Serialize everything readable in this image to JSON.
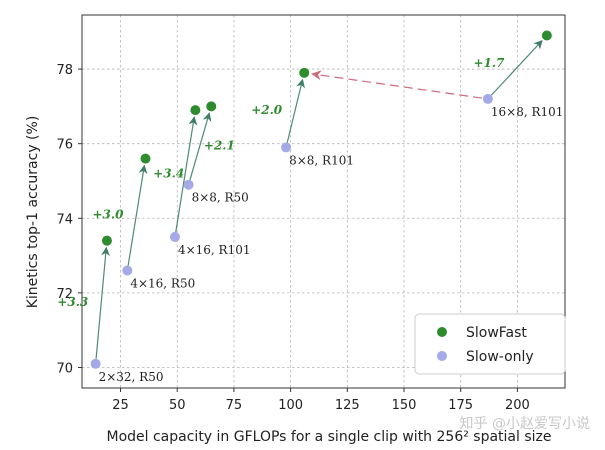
{
  "chart_data": {
    "type": "scatter",
    "title": "",
    "xlabel": "Model capacity in GFLOPs for a single clip with 256² spatial size",
    "ylabel": "Kinetics top-1 accuracy (%)",
    "xlim": [
      8,
      221
    ],
    "ylim": [
      69.45,
      79.45
    ],
    "xticks": [
      25,
      50,
      75,
      100,
      125,
      150,
      175,
      200
    ],
    "yticks": [
      70,
      72,
      74,
      76,
      78
    ],
    "grid": true,
    "legend_position": "bottom-right",
    "series": [
      {
        "name": "SlowFast",
        "color": "#2e8b2e",
        "points": [
          {
            "x": 19,
            "y": 73.4
          },
          {
            "x": 36,
            "y": 75.6
          },
          {
            "x": 58,
            "y": 76.9
          },
          {
            "x": 65,
            "y": 77.0
          },
          {
            "x": 106,
            "y": 77.9
          },
          {
            "x": 213,
            "y": 78.9
          }
        ]
      },
      {
        "name": "Slow-only",
        "color": "#a4a9e8",
        "points": [
          {
            "x": 14,
            "y": 70.1,
            "label": "2×32, R50"
          },
          {
            "x": 28,
            "y": 72.6,
            "label": "4×16, R50"
          },
          {
            "x": 49,
            "y": 73.5,
            "label": "4×16, R101"
          },
          {
            "x": 55,
            "y": 74.9,
            "label": "8×8, R50"
          },
          {
            "x": 98,
            "y": 75.9,
            "label": "8×8, R101"
          },
          {
            "x": 187,
            "y": 77.2,
            "label": "16×8, R101"
          }
        ]
      }
    ],
    "arrows": [
      {
        "from": [
          14,
          70.1
        ],
        "to": [
          19,
          73.4
        ],
        "gain": "+3.3"
      },
      {
        "from": [
          28,
          72.6
        ],
        "to": [
          36,
          75.6
        ],
        "gain": "+3.0"
      },
      {
        "from": [
          49,
          73.5
        ],
        "to": [
          58,
          76.9
        ],
        "gain": "+3.4"
      },
      {
        "from": [
          55,
          74.9
        ],
        "to": [
          65,
          77.0
        ],
        "gain": "+2.1"
      },
      {
        "from": [
          98,
          75.9
        ],
        "to": [
          106,
          77.9
        ],
        "gain": "+2.0"
      },
      {
        "from": [
          187,
          77.2
        ],
        "to": [
          213,
          78.9
        ],
        "gain": "+1.7"
      }
    ],
    "dashed_arrow": {
      "from": [
        187,
        77.2
      ],
      "to": [
        106,
        77.9
      ]
    }
  },
  "watermark": "知乎 @小赵爱写小说"
}
